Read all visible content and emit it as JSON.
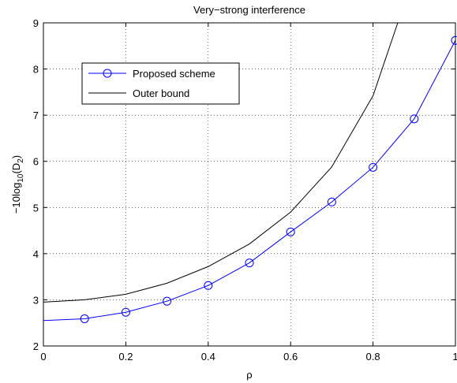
{
  "chart_data": {
    "type": "line",
    "title": "Very−strong interference",
    "xlabel": "ρ",
    "ylabel_main": "−10log",
    "ylabel_sub": "10",
    "ylabel_paren_open": "(D",
    "ylabel_sub2": "2",
    "ylabel_paren_close": ")",
    "xlim": [
      0,
      1
    ],
    "ylim": [
      2,
      9
    ],
    "xticks": [
      0,
      0.2,
      0.4,
      0.6,
      0.8,
      1
    ],
    "xtick_labels": [
      "0",
      "0.2",
      "0.4",
      "0.6",
      "0.8",
      "1"
    ],
    "yticks": [
      2,
      3,
      4,
      5,
      6,
      7,
      8,
      9
    ],
    "ytick_labels": [
      "2",
      "3",
      "4",
      "5",
      "6",
      "7",
      "8",
      "9"
    ],
    "grid": true,
    "legend_position": "top-left",
    "series": [
      {
        "name": "Proposed scheme",
        "color": "#0000ff",
        "marker": "circle",
        "x": [
          0,
          0.1,
          0.2,
          0.3,
          0.4,
          0.5,
          0.6,
          0.7,
          0.8,
          0.9,
          1.0
        ],
        "y": [
          2.55,
          2.59,
          2.73,
          2.97,
          3.31,
          3.8,
          4.47,
          5.12,
          5.87,
          6.92,
          8.62
        ],
        "marker_x": [
          0.1,
          0.2,
          0.3,
          0.4,
          0.5,
          0.6,
          0.7,
          0.8,
          0.9,
          1.0
        ],
        "marker_y": [
          2.59,
          2.73,
          2.97,
          3.31,
          3.8,
          4.47,
          5.12,
          5.87,
          6.92,
          8.62
        ]
      },
      {
        "name": "Outer bound",
        "color": "#000000",
        "marker": "none",
        "x": [
          0,
          0.1,
          0.2,
          0.3,
          0.4,
          0.5,
          0.6,
          0.7,
          0.8,
          0.86
        ],
        "y": [
          2.95,
          3.0,
          3.12,
          3.36,
          3.72,
          4.21,
          4.9,
          5.88,
          7.42,
          9.0
        ]
      }
    ]
  }
}
